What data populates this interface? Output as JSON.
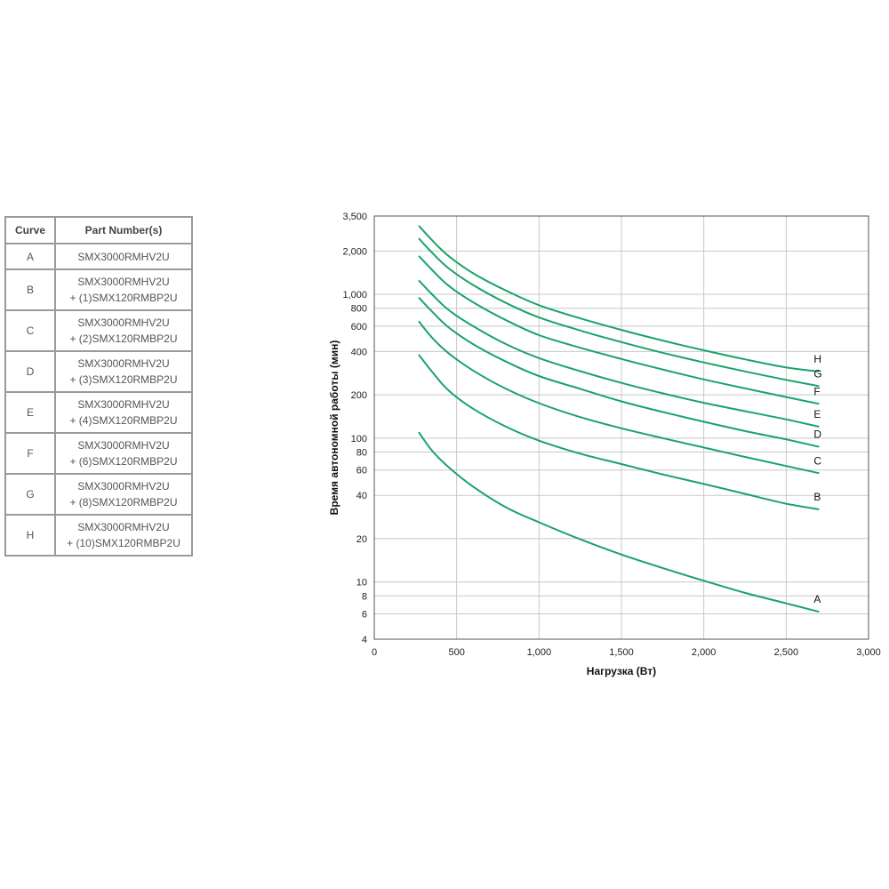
{
  "table": {
    "headers": [
      "Curve",
      "Part Number(s)"
    ],
    "rows": [
      {
        "curve": "A",
        "part": "SMX3000RMHV2U",
        "addon": ""
      },
      {
        "curve": "B",
        "part": "SMX3000RMHV2U",
        "addon": "+ (1)SMX120RMBP2U"
      },
      {
        "curve": "C",
        "part": "SMX3000RMHV2U",
        "addon": "+ (2)SMX120RMBP2U"
      },
      {
        "curve": "D",
        "part": "SMX3000RMHV2U",
        "addon": "+ (3)SMX120RMBP2U"
      },
      {
        "curve": "E",
        "part": "SMX3000RMHV2U",
        "addon": "+ (4)SMX120RMBP2U"
      },
      {
        "curve": "F",
        "part": "SMX3000RMHV2U",
        "addon": "+ (6)SMX120RMBP2U"
      },
      {
        "curve": "G",
        "part": "SMX3000RMHV2U",
        "addon": "+ (8)SMX120RMBP2U"
      },
      {
        "curve": "H",
        "part": "SMX3000RMHV2U",
        "addon": "+ (10)SMX120RMBP2U"
      }
    ]
  },
  "chart_data": {
    "type": "line",
    "title": "",
    "xlabel": "Нагрузка (Вт)",
    "ylabel": "Время автономной работы (мин)",
    "xlim": [
      0,
      3000
    ],
    "ylim": [
      4,
      3500
    ],
    "yscale": "log",
    "grid": true,
    "line_color": "#1aa36a",
    "x_ticks": [
      0,
      500,
      1000,
      1500,
      2000,
      2500,
      3000
    ],
    "x_tick_labels": [
      "0",
      "500",
      "1,000",
      "1,500",
      "2,000",
      "2,500",
      "3,000"
    ],
    "y_ticks": [
      4,
      6,
      8,
      10,
      20,
      40,
      60,
      80,
      100,
      200,
      400,
      600,
      800,
      1000,
      2000,
      3500
    ],
    "y_tick_labels": [
      "4",
      "6",
      "8",
      "10",
      "20",
      "40",
      "60",
      "80",
      "100",
      "200",
      "400",
      "600",
      "800",
      "1,000",
      "2,000",
      "3,500"
    ],
    "x": [
      270,
      350,
      450,
      600,
      800,
      1000,
      1250,
      1500,
      1750,
      2000,
      2250,
      2500,
      2700
    ],
    "series": [
      {
        "name": "A",
        "values": [
          110,
          82,
          63,
          46,
          33,
          26,
          19.8,
          15.5,
          12.5,
          10.2,
          8.4,
          7.1,
          6.2
        ]
      },
      {
        "name": "B",
        "values": [
          380,
          290,
          215,
          160,
          120,
          96,
          78,
          66,
          56,
          48,
          41,
          35,
          32
        ]
      },
      {
        "name": "C",
        "values": [
          650,
          500,
          390,
          295,
          220,
          175,
          140,
          117,
          100,
          86,
          74,
          64,
          57
        ]
      },
      {
        "name": "D",
        "values": [
          950,
          760,
          590,
          450,
          340,
          270,
          220,
          180,
          152,
          130,
          112,
          98,
          87
        ]
      },
      {
        "name": "E",
        "values": [
          1250,
          1000,
          780,
          600,
          450,
          360,
          292,
          242,
          205,
          176,
          154,
          135,
          120
        ]
      },
      {
        "name": "F",
        "values": [
          1850,
          1480,
          1150,
          880,
          660,
          520,
          425,
          355,
          300,
          256,
          222,
          193,
          173
        ]
      },
      {
        "name": "G",
        "values": [
          2450,
          1950,
          1520,
          1160,
          870,
          690,
          560,
          465,
          392,
          336,
          291,
          254,
          230
        ]
      },
      {
        "name": "H",
        "values": [
          3000,
          2380,
          1850,
          1400,
          1060,
          840,
          680,
          565,
          477,
          408,
          353,
          310,
          290
        ]
      }
    ]
  }
}
